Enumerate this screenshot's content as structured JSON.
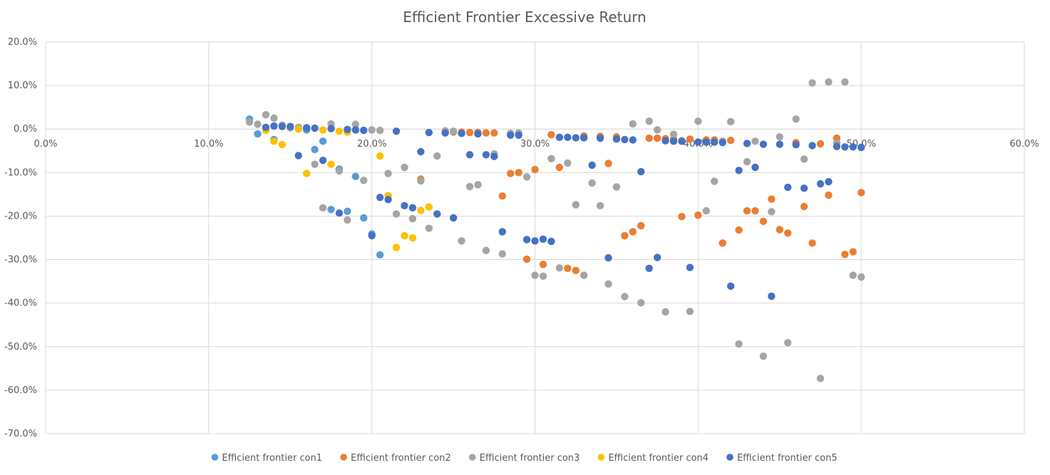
{
  "chart_data": {
    "type": "scatter",
    "title": "Efficient Frontier Excessive Return",
    "xlabel": "",
    "ylabel": "",
    "xlim": [
      0,
      0.6
    ],
    "ylim": [
      -0.7,
      0.2
    ],
    "x_ticks": [
      0,
      0.1,
      0.2,
      0.3,
      0.4,
      0.5,
      0.6
    ],
    "x_tick_labels": [
      "0.0%",
      "10.0%",
      "20.0%",
      "30.0%",
      "40.0%",
      "50.0%",
      "60.0%"
    ],
    "y_ticks": [
      0.2,
      0.1,
      0,
      -0.1,
      -0.2,
      -0.3,
      -0.4,
      -0.5,
      -0.6,
      -0.7
    ],
    "y_tick_labels": [
      "20.0%",
      "10.0%",
      "0.0%",
      "-10.0%",
      "-20.0%",
      "-30.0%",
      "-40.0%",
      "-50.0%",
      "-60.0%",
      "-70.0%"
    ],
    "grid": "vertical-and-horizontal",
    "legend_position": "bottom",
    "series": [
      {
        "name": "Efficient frontier con1",
        "color": "#5b9bd5",
        "points": [
          [
            0.125,
            0.023
          ],
          [
            0.13,
            -0.011
          ],
          [
            0.14,
            -0.024
          ],
          [
            0.16,
            -0.002
          ],
          [
            0.165,
            -0.047
          ],
          [
            0.17,
            -0.028
          ],
          [
            0.18,
            -0.092
          ],
          [
            0.19,
            -0.109
          ],
          [
            0.175,
            -0.185
          ],
          [
            0.185,
            -0.189
          ],
          [
            0.195,
            -0.204
          ],
          [
            0.2,
            -0.241
          ],
          [
            0.205,
            -0.289
          ]
        ]
      },
      {
        "name": "Efficient frontier con2",
        "color": "#ed7d31",
        "points": [
          [
            0.23,
            -0.115
          ],
          [
            0.245,
            -0.007
          ],
          [
            0.25,
            -0.007
          ],
          [
            0.255,
            -0.007
          ],
          [
            0.26,
            -0.008
          ],
          [
            0.265,
            -0.008
          ],
          [
            0.27,
            -0.009
          ],
          [
            0.275,
            -0.009
          ],
          [
            0.28,
            -0.154
          ],
          [
            0.285,
            -0.102
          ],
          [
            0.29,
            -0.1
          ],
          [
            0.295,
            -0.299
          ],
          [
            0.3,
            -0.093
          ],
          [
            0.305,
            -0.311
          ],
          [
            0.31,
            -0.013
          ],
          [
            0.315,
            -0.088
          ],
          [
            0.32,
            -0.32
          ],
          [
            0.325,
            -0.325
          ],
          [
            0.33,
            -0.016
          ],
          [
            0.34,
            -0.017
          ],
          [
            0.345,
            -0.079
          ],
          [
            0.35,
            -0.018
          ],
          [
            0.355,
            -0.245
          ],
          [
            0.36,
            -0.236
          ],
          [
            0.365,
            -0.222
          ],
          [
            0.37,
            -0.021
          ],
          [
            0.375,
            -0.021
          ],
          [
            0.38,
            -0.022
          ],
          [
            0.385,
            -0.023
          ],
          [
            0.39,
            -0.201
          ],
          [
            0.395,
            -0.023
          ],
          [
            0.4,
            -0.198
          ],
          [
            0.405,
            -0.025
          ],
          [
            0.41,
            -0.025
          ],
          [
            0.415,
            -0.262
          ],
          [
            0.42,
            -0.026
          ],
          [
            0.425,
            -0.232
          ],
          [
            0.43,
            -0.188
          ],
          [
            0.435,
            -0.188
          ],
          [
            0.44,
            -0.212
          ],
          [
            0.445,
            -0.161
          ],
          [
            0.45,
            -0.231
          ],
          [
            0.455,
            -0.239
          ],
          [
            0.46,
            -0.031
          ],
          [
            0.465,
            -0.178
          ],
          [
            0.47,
            -0.262
          ],
          [
            0.475,
            -0.034
          ],
          [
            0.48,
            -0.152
          ],
          [
            0.485,
            -0.021
          ],
          [
            0.49,
            -0.288
          ],
          [
            0.495,
            -0.282
          ],
          [
            0.5,
            -0.146
          ]
        ]
      },
      {
        "name": "Efficient frontier con3",
        "color": "#a5a5a5",
        "points": [
          [
            0.125,
            0.016
          ],
          [
            0.13,
            0.011
          ],
          [
            0.135,
            0.033
          ],
          [
            0.14,
            0.025
          ],
          [
            0.145,
            0.009
          ],
          [
            0.15,
            0.003
          ],
          [
            0.155,
            0.004
          ],
          [
            0.16,
            0.003
          ],
          [
            0.165,
            -0.081
          ],
          [
            0.17,
            -0.181
          ],
          [
            0.175,
            0.012
          ],
          [
            0.18,
            -0.096
          ],
          [
            0.185,
            -0.209
          ],
          [
            0.19,
            0.011
          ],
          [
            0.195,
            -0.118
          ],
          [
            0.2,
            -0.002
          ],
          [
            0.205,
            -0.003
          ],
          [
            0.21,
            -0.102
          ],
          [
            0.215,
            -0.195
          ],
          [
            0.22,
            -0.088
          ],
          [
            0.225,
            -0.206
          ],
          [
            0.23,
            -0.119
          ],
          [
            0.235,
            -0.228
          ],
          [
            0.24,
            -0.062
          ],
          [
            0.245,
            -0.004
          ],
          [
            0.25,
            -0.005
          ],
          [
            0.255,
            -0.257
          ],
          [
            0.26,
            -0.132
          ],
          [
            0.265,
            -0.128
          ],
          [
            0.27,
            -0.279
          ],
          [
            0.275,
            -0.057
          ],
          [
            0.28,
            -0.287
          ],
          [
            0.285,
            -0.01
          ],
          [
            0.29,
            -0.009
          ],
          [
            0.295,
            -0.11
          ],
          [
            0.3,
            -0.336
          ],
          [
            0.305,
            -0.338
          ],
          [
            0.31,
            -0.068
          ],
          [
            0.315,
            -0.319
          ],
          [
            0.32,
            -0.078
          ],
          [
            0.325,
            -0.174
          ],
          [
            0.33,
            -0.336
          ],
          [
            0.335,
            -0.124
          ],
          [
            0.34,
            -0.176
          ],
          [
            0.345,
            -0.356
          ],
          [
            0.35,
            -0.133
          ],
          [
            0.355,
            -0.385
          ],
          [
            0.36,
            0.012
          ],
          [
            0.365,
            -0.399
          ],
          [
            0.37,
            0.018
          ],
          [
            0.375,
            -0.002
          ],
          [
            0.38,
            -0.42
          ],
          [
            0.385,
            -0.012
          ],
          [
            0.39,
            -0.027
          ],
          [
            0.395,
            -0.419
          ],
          [
            0.4,
            0.018
          ],
          [
            0.405,
            -0.188
          ],
          [
            0.41,
            -0.12
          ],
          [
            0.415,
            -0.028
          ],
          [
            0.42,
            0.017
          ],
          [
            0.425,
            -0.494
          ],
          [
            0.43,
            -0.075
          ],
          [
            0.435,
            -0.028
          ],
          [
            0.44,
            -0.522
          ],
          [
            0.445,
            -0.19
          ],
          [
            0.45,
            -0.018
          ],
          [
            0.455,
            -0.491
          ],
          [
            0.46,
            0.023
          ],
          [
            0.465,
            -0.069
          ],
          [
            0.47,
            0.106
          ],
          [
            0.475,
            -0.573
          ],
          [
            0.48,
            0.108
          ],
          [
            0.485,
            -0.032
          ],
          [
            0.49,
            0.108
          ],
          [
            0.495,
            -0.336
          ],
          [
            0.5,
            -0.34
          ]
        ]
      },
      {
        "name": "Efficient frontier con4",
        "color": "#ffc000",
        "points": [
          [
            0.135,
            -0.003
          ],
          [
            0.14,
            -0.028
          ],
          [
            0.145,
            -0.036
          ],
          [
            0.155,
            0.0
          ],
          [
            0.16,
            -0.102
          ],
          [
            0.17,
            -0.002
          ],
          [
            0.175,
            -0.081
          ],
          [
            0.18,
            -0.005
          ],
          [
            0.185,
            -0.007
          ],
          [
            0.205,
            -0.062
          ],
          [
            0.21,
            -0.153
          ],
          [
            0.215,
            -0.272
          ],
          [
            0.22,
            -0.245
          ],
          [
            0.225,
            -0.25
          ],
          [
            0.23,
            -0.187
          ],
          [
            0.235,
            -0.179
          ]
        ]
      },
      {
        "name": "Efficient frontier con5",
        "color": "#4472c4",
        "points": [
          [
            0.135,
            0.004
          ],
          [
            0.14,
            0.007
          ],
          [
            0.145,
            0.006
          ],
          [
            0.15,
            0.006
          ],
          [
            0.155,
            -0.061
          ],
          [
            0.16,
            0.003
          ],
          [
            0.165,
            0.002
          ],
          [
            0.17,
            -0.072
          ],
          [
            0.175,
            0.001
          ],
          [
            0.18,
            -0.193
          ],
          [
            0.185,
            -0.001
          ],
          [
            0.19,
            -0.002
          ],
          [
            0.195,
            -0.003
          ],
          [
            0.2,
            -0.245
          ],
          [
            0.205,
            -0.157
          ],
          [
            0.21,
            -0.162
          ],
          [
            0.215,
            -0.005
          ],
          [
            0.22,
            -0.176
          ],
          [
            0.225,
            -0.181
          ],
          [
            0.23,
            -0.052
          ],
          [
            0.235,
            -0.008
          ],
          [
            0.24,
            -0.195
          ],
          [
            0.245,
            -0.009
          ],
          [
            0.25,
            -0.204
          ],
          [
            0.255,
            -0.01
          ],
          [
            0.26,
            -0.059
          ],
          [
            0.265,
            -0.011
          ],
          [
            0.27,
            -0.059
          ],
          [
            0.275,
            -0.063
          ],
          [
            0.28,
            -0.236
          ],
          [
            0.285,
            -0.014
          ],
          [
            0.29,
            -0.014
          ],
          [
            0.295,
            -0.254
          ],
          [
            0.3,
            -0.257
          ],
          [
            0.305,
            -0.253
          ],
          [
            0.31,
            -0.258
          ],
          [
            0.315,
            -0.019
          ],
          [
            0.32,
            -0.019
          ],
          [
            0.325,
            -0.02
          ],
          [
            0.33,
            -0.02
          ],
          [
            0.335,
            -0.083
          ],
          [
            0.34,
            -0.021
          ],
          [
            0.345,
            -0.296
          ],
          [
            0.35,
            -0.023
          ],
          [
            0.355,
            -0.024
          ],
          [
            0.36,
            -0.025
          ],
          [
            0.365,
            -0.098
          ],
          [
            0.37,
            -0.32
          ],
          [
            0.375,
            -0.295
          ],
          [
            0.38,
            -0.027
          ],
          [
            0.385,
            -0.028
          ],
          [
            0.39,
            -0.028
          ],
          [
            0.395,
            -0.318
          ],
          [
            0.4,
            -0.03
          ],
          [
            0.405,
            -0.03
          ],
          [
            0.41,
            -0.03
          ],
          [
            0.415,
            -0.031
          ],
          [
            0.42,
            -0.361
          ],
          [
            0.425,
            -0.095
          ],
          [
            0.43,
            -0.033
          ],
          [
            0.435,
            -0.088
          ],
          [
            0.44,
            -0.035
          ],
          [
            0.445,
            -0.384
          ],
          [
            0.45,
            -0.035
          ],
          [
            0.455,
            -0.134
          ],
          [
            0.46,
            -0.036
          ],
          [
            0.465,
            -0.136
          ],
          [
            0.47,
            -0.038
          ],
          [
            0.475,
            -0.126
          ],
          [
            0.48,
            -0.121
          ],
          [
            0.485,
            -0.04
          ],
          [
            0.49,
            -0.041
          ],
          [
            0.495,
            -0.041
          ],
          [
            0.5,
            -0.042
          ]
        ]
      }
    ]
  }
}
